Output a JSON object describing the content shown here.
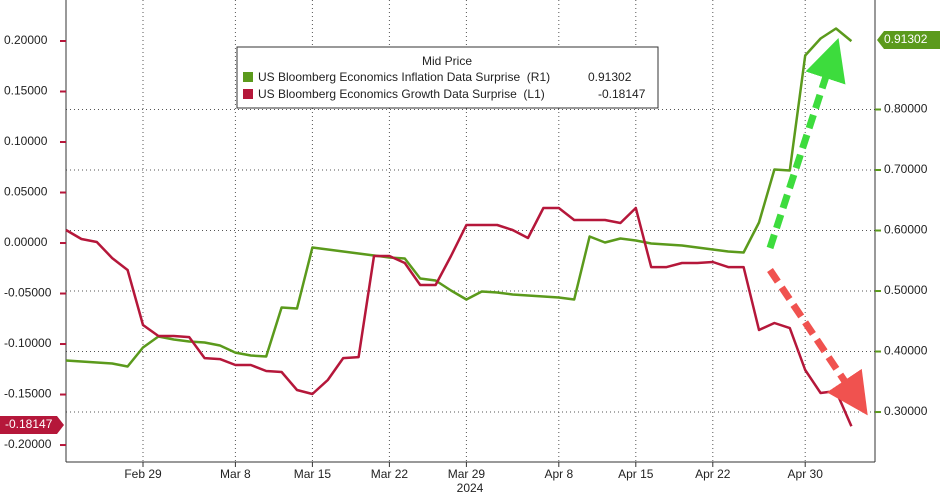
{
  "chart_data": {
    "type": "line",
    "legend_title": "Mid Price",
    "x_label": "2024",
    "categories": [
      null,
      null,
      null,
      null,
      null,
      "Feb 29",
      null,
      null,
      null,
      null,
      null,
      "Mar 8",
      null,
      null,
      null,
      null,
      "Mar 15",
      null,
      null,
      null,
      null,
      "Mar 22",
      null,
      null,
      null,
      null,
      "Mar 29",
      null,
      null,
      null,
      null,
      null,
      "Apr 8",
      null,
      null,
      null,
      null,
      "Apr 15",
      null,
      null,
      null,
      null,
      "Apr 22",
      null,
      null,
      null,
      null,
      null,
      "Apr 30",
      null,
      null,
      null
    ],
    "series": [
      {
        "name": "US Bloomberg Economics Inflation Data Surprise  (R1)",
        "color": "#5b9a1c",
        "axis": "y2",
        "values": [
          0.3851,
          0.3835,
          0.3818,
          0.3802,
          0.3752,
          0.4066,
          0.4248,
          0.4198,
          0.4165,
          0.4149,
          0.4099,
          0.3983,
          0.3934,
          0.3917,
          0.4727,
          0.4711,
          0.5719,
          0.5686,
          0.5653,
          0.562,
          0.5587,
          0.5554,
          0.5537,
          0.5207,
          0.5174,
          0.5008,
          0.486,
          0.4992,
          0.4975,
          0.4942,
          0.4926,
          0.4909,
          0.4893,
          0.486,
          0.5901,
          0.5802,
          0.5868,
          0.5835,
          0.5785,
          0.5769,
          0.5752,
          0.5719,
          0.5686,
          0.5653,
          0.5636,
          0.6132,
          0.7008,
          0.6992,
          0.8893,
          0.9174,
          0.9339,
          0.91302
        ]
      },
      {
        "name": "US Bloomberg Economics Growth Data Surprise  (L1)",
        "color": "#b5173a",
        "axis": "y",
        "values": [
          0.0129,
          0.004,
          0.001,
          -0.0149,
          -0.0267,
          -0.0812,
          -0.0921,
          -0.0921,
          -0.0931,
          -0.1139,
          -0.1149,
          -0.1208,
          -0.1208,
          -0.1267,
          -0.1277,
          -0.1455,
          -0.1495,
          -0.1356,
          -0.1139,
          -0.1129,
          -0.0129,
          -0.0129,
          -0.0198,
          -0.0416,
          -0.0416,
          -0.0129,
          0.0178,
          0.0178,
          0.0178,
          0.0129,
          0.005,
          0.0347,
          0.0347,
          0.0228,
          0.0228,
          0.0228,
          0.0198,
          0.0347,
          -0.0238,
          -0.0238,
          -0.0198,
          -0.0198,
          -0.0188,
          -0.0238,
          -0.0238,
          -0.0861,
          -0.0792,
          -0.0842,
          -0.1257,
          -0.1485,
          -0.1465,
          -0.18147
        ]
      }
    ],
    "ylim": [
      -0.2168,
      0.2406
    ],
    "yticks": [
      {
        "value": 0.2,
        "label": "0.20000"
      },
      {
        "value": 0.15,
        "label": "0.15000"
      },
      {
        "value": 0.1,
        "label": "0.10000"
      },
      {
        "value": 0.05,
        "label": "0.05000"
      },
      {
        "value": 0,
        "label": "0.00000"
      },
      {
        "value": -0.05,
        "label": "-0.05000"
      },
      {
        "value": -0.1,
        "label": "-0.10000"
      },
      {
        "value": -0.15,
        "label": "-0.15000"
      },
      {
        "value": -0.2,
        "label": "-0.20000"
      }
    ],
    "y2lim": [
      0.2174,
      0.981
    ],
    "y2ticks": [
      {
        "value": 0.8,
        "label": "0.80000"
      },
      {
        "value": 0.7,
        "label": "0.70000"
      },
      {
        "value": 0.6,
        "label": "0.60000"
      },
      {
        "value": 0.5,
        "label": "0.50000"
      },
      {
        "value": 0.4,
        "label": "0.40000"
      },
      {
        "value": 0.3,
        "label": "0.30000"
      }
    ],
    "grid": true
  }
}
